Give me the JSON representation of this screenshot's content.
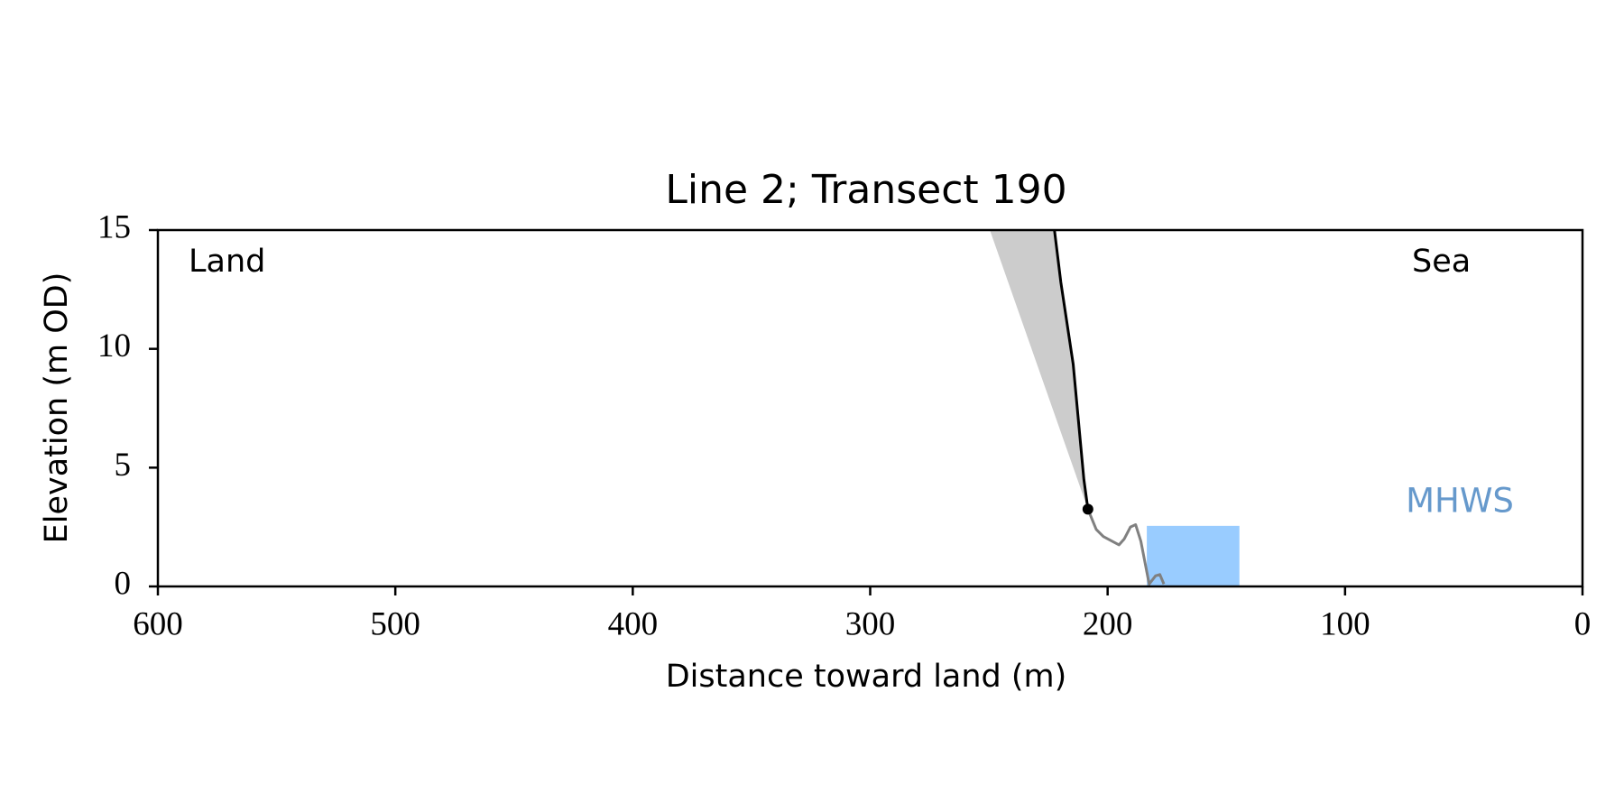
{
  "chart_data": {
    "type": "line",
    "title": "Line 2; Transect 190",
    "x_label": "Distance toward land (m)",
    "y_label": "Elevation (m OD)",
    "annotations": [
      "Land",
      "Sea"
    ],
    "xlim": [
      600,
      0
    ],
    "xticks": [
      600,
      500,
      400,
      300,
      200,
      100,
      0
    ],
    "ylim": [
      0,
      15
    ],
    "yticks": [
      0,
      5,
      10,
      15
    ],
    "series": [
      {
        "color": "#000000",
        "x": [
          208.3,
          210,
          214.5,
          219.7,
          222.4
        ],
        "y": [
          3.25,
          4.5,
          9.35,
          12.8,
          15
        ]
      },
      {
        "color": "#808080",
        "x": [
          208.3,
          204.8,
          201.8,
          195.2,
          193,
          190.4,
          188.2,
          186,
          182.5,
          179.8,
          178,
          176.3
        ],
        "y": [
          3.25,
          2.4,
          2.1,
          1.75,
          2.0,
          2.5,
          2.6,
          1.9,
          0.1,
          0.45,
          0.5,
          0.1
        ]
      }
    ],
    "shaded_region": {
      "color": "#cccccc",
      "x": [
        249.6,
        208.3
      ],
      "y": [
        15,
        3.25
      ]
    },
    "point": {
      "color": "#000000",
      "x": 208.3,
      "y": 3.25
    },
    "mhws": {
      "label": "MHWS",
      "value": 2.55,
      "x": [
        183.5,
        144.5
      ],
      "color": "#99ccff",
      "label_color": "#6699cc"
    }
  }
}
